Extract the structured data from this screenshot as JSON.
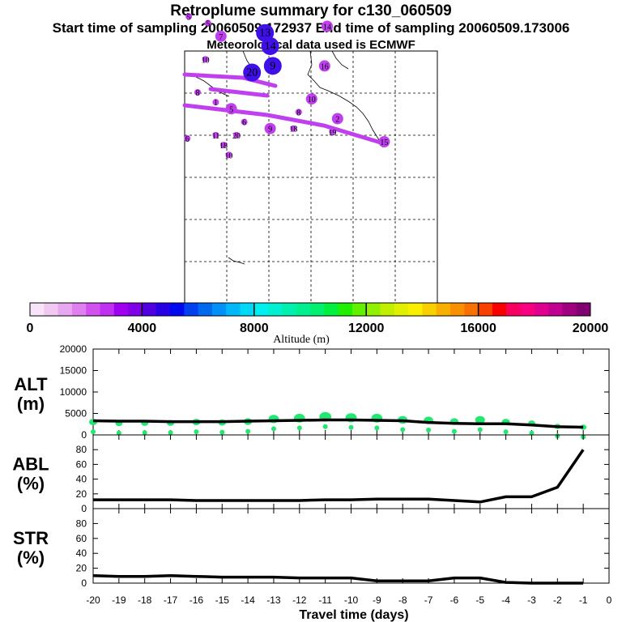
{
  "header": {
    "title": "Retroplume summary for c130_060509",
    "sampling": "Start time of sampling 20060509.172937     End time of sampling 20060509.173006",
    "met": "Meteorological data used is ECMWF"
  },
  "colorbar": {
    "label": "Altitude (m)",
    "ticks": [
      "0",
      "4000",
      "8000",
      "12000",
      "16000",
      "20000"
    ],
    "range": [
      0,
      20000
    ],
    "colors": [
      "#f8e4f8",
      "#f0c8f0",
      "#e8a8f0",
      "#e080f0",
      "#d050f0",
      "#c030f0",
      "#a000f0",
      "#8000e8",
      "#5000e0",
      "#2800e8",
      "#0008f0",
      "#0040f0",
      "#0068f0",
      "#0090f8",
      "#00b8f8",
      "#00d8f8",
      "#00f0f0",
      "#00f0d0",
      "#00f0b0",
      "#00f090",
      "#00f070",
      "#00f040",
      "#20f000",
      "#60f000",
      "#90f000",
      "#c0f000",
      "#e0f000",
      "#f8f000",
      "#f8d000",
      "#f8b000",
      "#f89000",
      "#f87000",
      "#f84000",
      "#f80000",
      "#f80060",
      "#f80080",
      "#e00090",
      "#c00090",
      "#a00080",
      "#800070"
    ]
  },
  "map": {
    "alt_color": "#c040f0",
    "high_color": "#4010e8",
    "points": [
      {
        "n": "5",
        "lon": 1.6,
        "lat": 73
      },
      {
        "n": "5",
        "lon": 9,
        "lat": 71
      },
      {
        "n": "7",
        "lon": 14,
        "lat": 67,
        "big": 1
      },
      {
        "n": "13",
        "lon": 31,
        "lat": 68,
        "big": 2
      },
      {
        "n": "14",
        "lon": 33,
        "lat": 64,
        "big": 2
      },
      {
        "n": "10",
        "lon": 8,
        "lat": 60
      },
      {
        "n": "20",
        "lon": 26,
        "lat": 56,
        "big": 2
      },
      {
        "n": "9",
        "lon": 34,
        "lat": 58,
        "big": 2
      },
      {
        "n": "16",
        "lon": 54,
        "lat": 58,
        "big": 1
      },
      {
        "n": "14",
        "lon": 55,
        "lat": 70,
        "big": 1
      },
      {
        "n": "8",
        "lon": 5,
        "lat": 50
      },
      {
        "n": "1",
        "lon": 12,
        "lat": 47
      },
      {
        "n": "5",
        "lon": 18,
        "lat": 45,
        "big": 1
      },
      {
        "n": "10",
        "lon": 49,
        "lat": 48,
        "big": 1
      },
      {
        "n": "2",
        "lon": 59,
        "lat": 42,
        "big": 1
      },
      {
        "n": "8",
        "lon": 44,
        "lat": 44
      },
      {
        "n": "6",
        "lon": 23,
        "lat": 41
      },
      {
        "n": "11",
        "lon": 12,
        "lat": 37
      },
      {
        "n": "9",
        "lon": 33,
        "lat": 39,
        "big": 1
      },
      {
        "n": "18",
        "lon": 42,
        "lat": 39
      },
      {
        "n": "19",
        "lon": 57,
        "lat": 38
      },
      {
        "n": "20",
        "lon": 20,
        "lat": 37
      },
      {
        "n": "18",
        "lon": 15,
        "lat": 34
      },
      {
        "n": "10",
        "lon": 17,
        "lat": 31
      },
      {
        "n": "6",
        "lon": 1,
        "lat": 36
      },
      {
        "n": "15",
        "lon": 77,
        "lat": 35,
        "big": 1
      }
    ]
  },
  "chart_data": [
    {
      "type": "line",
      "title": "ALT (m)",
      "panel_label": [
        "ALT",
        "(m)"
      ],
      "xlabel": "Travel time (days)",
      "ylabel": "ALT (m)",
      "ylim": [
        0,
        20000
      ],
      "yticks": [
        "0",
        "5000",
        "10000",
        "15000",
        "20000"
      ],
      "x": [
        -20,
        -19,
        -18,
        -17,
        -16,
        -15,
        -14,
        -13,
        -12,
        -11,
        -10,
        -9,
        -8,
        -7,
        -6,
        -5,
        -4,
        -3,
        -2,
        -1
      ],
      "series": [
        {
          "name": "mean altitude",
          "values": [
            3300,
            3200,
            3200,
            3100,
            3100,
            3100,
            3200,
            3300,
            3400,
            3500,
            3500,
            3400,
            3300,
            2900,
            2700,
            2600,
            2600,
            2300,
            1900,
            1800
          ]
        }
      ],
      "blobs": [
        3000,
        2700,
        2800,
        2800,
        3000,
        2900,
        3100,
        3700,
        3900,
        4200,
        4000,
        3900,
        3500,
        3400,
        3100,
        3500,
        3000,
        2700,
        2000,
        1800
      ],
      "blob_color": "#20e870"
    },
    {
      "type": "line",
      "title": "ABL (%)",
      "panel_label": [
        "ABL",
        "(%)"
      ],
      "ylim": [
        0,
        100
      ],
      "yticks": [
        "0",
        "20",
        "40",
        "60",
        "80"
      ],
      "x": [
        -20,
        -19,
        -18,
        -17,
        -16,
        -15,
        -14,
        -13,
        -12,
        -11,
        -10,
        -9,
        -8,
        -7,
        -6,
        -5,
        -4,
        -3,
        -2,
        -1
      ],
      "series": [
        {
          "name": "ABL",
          "values": [
            12,
            12,
            12,
            12,
            11,
            11,
            11,
            11,
            11,
            12,
            12,
            13,
            13,
            13,
            11,
            9,
            16,
            16,
            29,
            80
          ]
        }
      ]
    },
    {
      "type": "line",
      "title": "STR (%)",
      "panel_label": [
        "STR",
        "(%)"
      ],
      "ylim": [
        0,
        100
      ],
      "yticks": [
        "0",
        "20",
        "40",
        "60",
        "80"
      ],
      "x": [
        -20,
        -19,
        -18,
        -17,
        -16,
        -15,
        -14,
        -13,
        -12,
        -11,
        -10,
        -9,
        -8,
        -7,
        -6,
        -5,
        -4,
        -3,
        -2,
        -1
      ],
      "series": [
        {
          "name": "STR",
          "values": [
            10,
            9,
            9,
            10,
            9,
            8,
            8,
            8,
            7,
            7,
            7,
            3,
            3,
            3,
            7,
            7,
            1,
            0,
            0,
            0
          ]
        }
      ]
    }
  ],
  "xaxis": {
    "ticks": [
      "-20",
      "-19",
      "-18",
      "-17",
      "-16",
      "-15",
      "-14",
      "-13",
      "-12",
      "-11",
      "-10",
      "-9",
      "-8",
      "-7",
      "-6",
      "-5",
      "-4",
      "-3",
      "-2",
      "-1",
      "0"
    ],
    "label": "Travel time (days)"
  }
}
